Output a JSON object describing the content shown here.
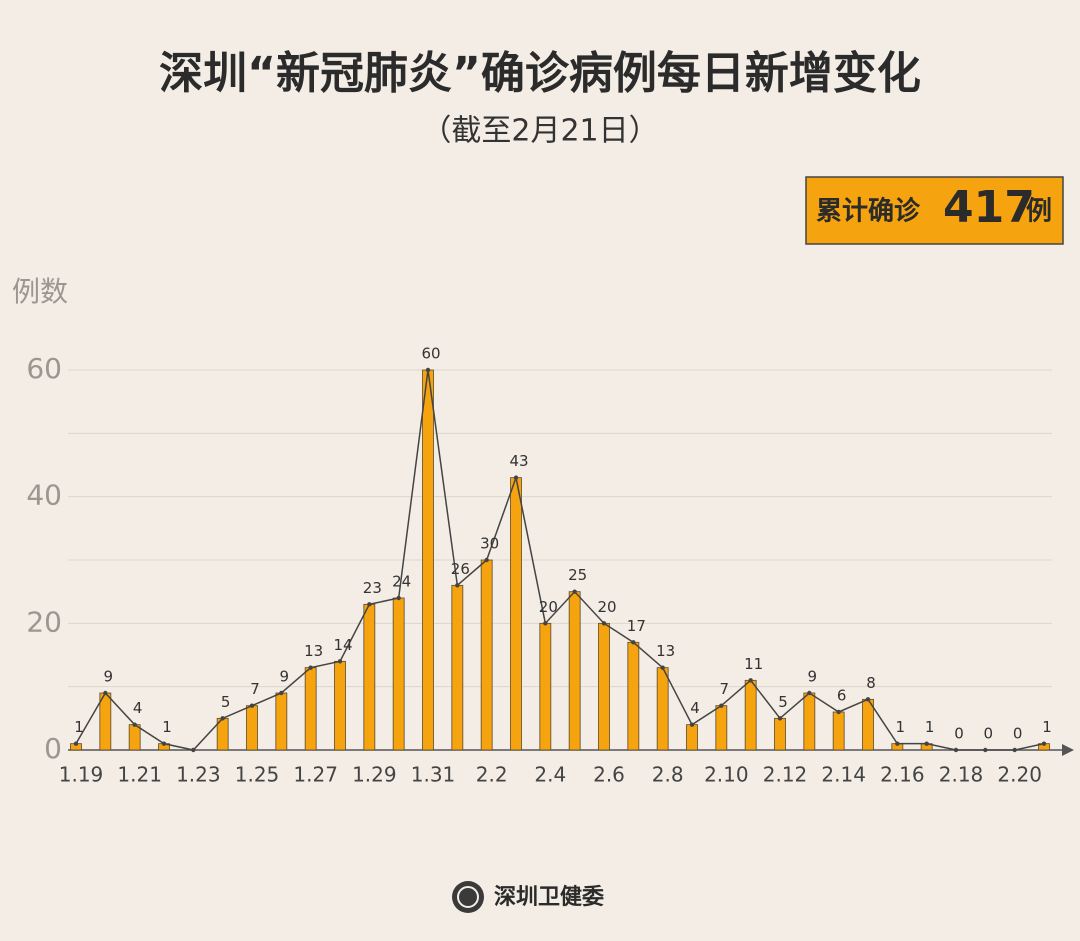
{
  "title": "深圳“新冠肺炎”确诊病例每日新增变化",
  "subtitle": "（截至2月21日）",
  "total_box": {
    "prefix": "累计确诊",
    "total": 417,
    "suffix": "例"
  },
  "footer": "深圳卫健委",
  "chart_data": {
    "type": "bar",
    "y_label": "例数",
    "categories": [
      "1.19",
      null,
      "1.21",
      null,
      "1.23",
      null,
      "1.25",
      null,
      "1.27",
      null,
      "1.29",
      null,
      "1.31",
      null,
      "2.2",
      null,
      "2.4",
      null,
      "2.6",
      null,
      "2.8",
      null,
      "2.10",
      null,
      "2.12",
      null,
      "2.14",
      null,
      "2.16",
      null,
      "2.18",
      null,
      "2.20",
      null
    ],
    "values": [
      1,
      9,
      4,
      1,
      0,
      5,
      7,
      9,
      13,
      14,
      23,
      24,
      60,
      26,
      30,
      43,
      20,
      25,
      20,
      17,
      13,
      4,
      7,
      11,
      5,
      9,
      6,
      8,
      1,
      1,
      0,
      0,
      0,
      1
    ],
    "value_labels": [
      "1",
      "9",
      "4",
      "1",
      null,
      "5",
      "7",
      "9",
      "13",
      "14",
      "23",
      "24",
      "60",
      "26",
      "30",
      "43",
      "20",
      "25",
      "20",
      "17",
      "13",
      "4",
      "7",
      "11",
      "5",
      "9",
      "6",
      "8",
      "1",
      "1",
      "0",
      "0",
      "0",
      "1"
    ],
    "color": "#f5a30f",
    "line_color": "#444444",
    "ylim": [
      0,
      60
    ],
    "yticks": [
      0,
      20,
      40,
      60
    ],
    "minor_yticks": [
      10,
      30,
      50
    ],
    "grid": true
  }
}
